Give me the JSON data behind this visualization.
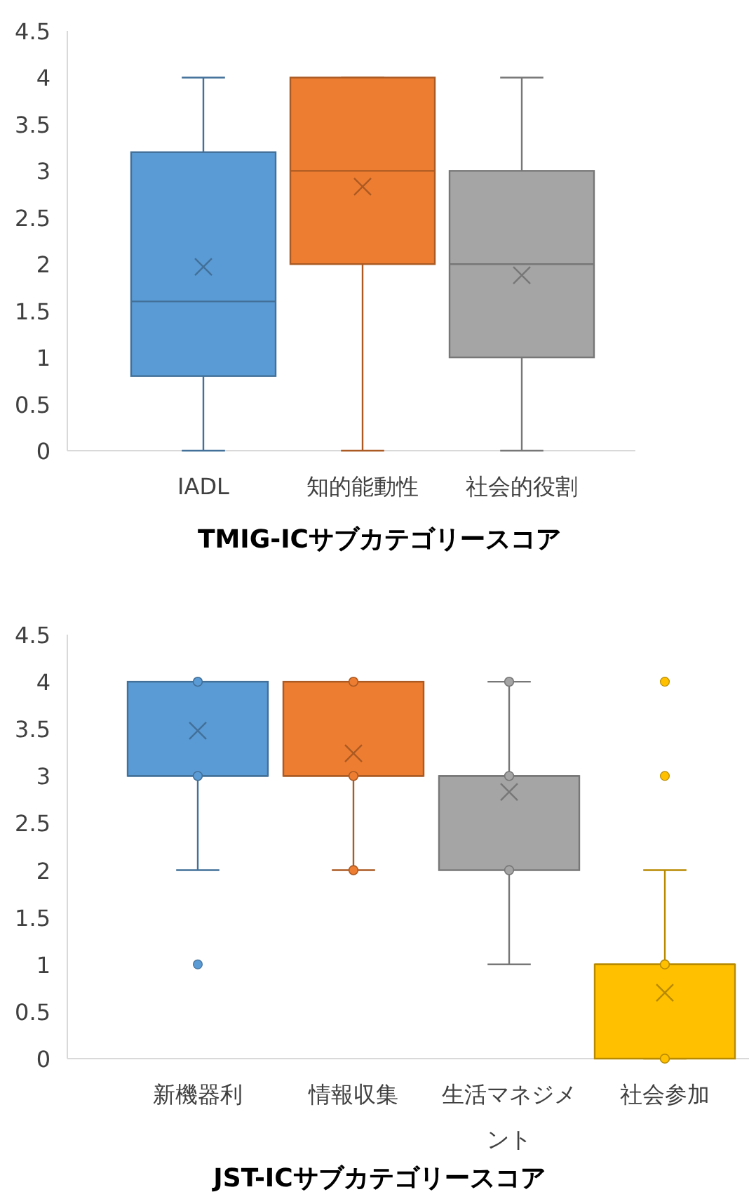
{
  "chart_data": [
    {
      "type": "box",
      "title": "TMIG-ICサブカテゴリースコア",
      "categories": [
        "IADL",
        "知的能動性",
        "社会的役割"
      ],
      "colors": [
        "#5b9bd5",
        "#ed7d31",
        "#a5a5a5"
      ],
      "ylim": [
        0,
        4.5
      ],
      "yticks": [
        0,
        0.5,
        1,
        1.5,
        2,
        2.5,
        3,
        3.5,
        4,
        4.5
      ],
      "boxes": [
        {
          "low": 0,
          "q1": 0.8,
          "median": 1.6,
          "q3": 3.2,
          "high": 4,
          "mean": 1.97
        },
        {
          "low": 0,
          "q1": 2,
          "median": 3,
          "q3": 4,
          "high": 4,
          "mean": 2.83
        },
        {
          "low": 0,
          "q1": 1,
          "median": 2,
          "q3": 3,
          "high": 4,
          "mean": 1.88
        }
      ]
    },
    {
      "type": "box",
      "title": "JST-ICサブカテゴリースコア",
      "categories": [
        "新機器利",
        "情報収集",
        "生活マネジメント",
        "社会参加"
      ],
      "colors": [
        "#5b9bd5",
        "#ed7d31",
        "#a5a5a5",
        "#ffc000"
      ],
      "ylim": [
        0,
        4.5
      ],
      "yticks": [
        0,
        0.5,
        1,
        1.5,
        2,
        2.5,
        3,
        3.5,
        4,
        4.5
      ],
      "boxes": [
        {
          "low": 2,
          "q1": 3,
          "median": 3,
          "q3": 4,
          "high": 4,
          "mean": 3.48,
          "outliers": [
            1
          ]
        },
        {
          "low": 2,
          "q1": 3,
          "median": 3,
          "q3": 4,
          "high": 4,
          "mean": 3.24
        },
        {
          "low": 1,
          "q1": 2,
          "median": 3,
          "q3": 3,
          "high": 4,
          "mean": 2.83
        },
        {
          "low": 0,
          "q1": 0,
          "median": 1,
          "q3": 1,
          "high": 2,
          "mean": 0.7,
          "outliers": [
            4,
            3
          ]
        }
      ],
      "series": [
        {
          "type": "scatter",
          "color": "#5b9bd5",
          "x": [
            "新機器利",
            "新機器利"
          ],
          "values": [
            4,
            3
          ]
        },
        {
          "type": "scatter",
          "color": "#ed7d31",
          "x": [
            "情報収集",
            "情報収集",
            "情報収集"
          ],
          "values": [
            4,
            3,
            2
          ]
        },
        {
          "type": "scatter",
          "color": "#a5a5a5",
          "x": [
            "生活マネジメント",
            "生活マネジメント",
            "生活マネジメント"
          ],
          "values": [
            4,
            3,
            2
          ]
        },
        {
          "type": "scatter",
          "color": "#ffc000",
          "x": [
            "社会参加",
            "社会参加"
          ],
          "values": [
            1,
            0
          ]
        }
      ]
    }
  ]
}
